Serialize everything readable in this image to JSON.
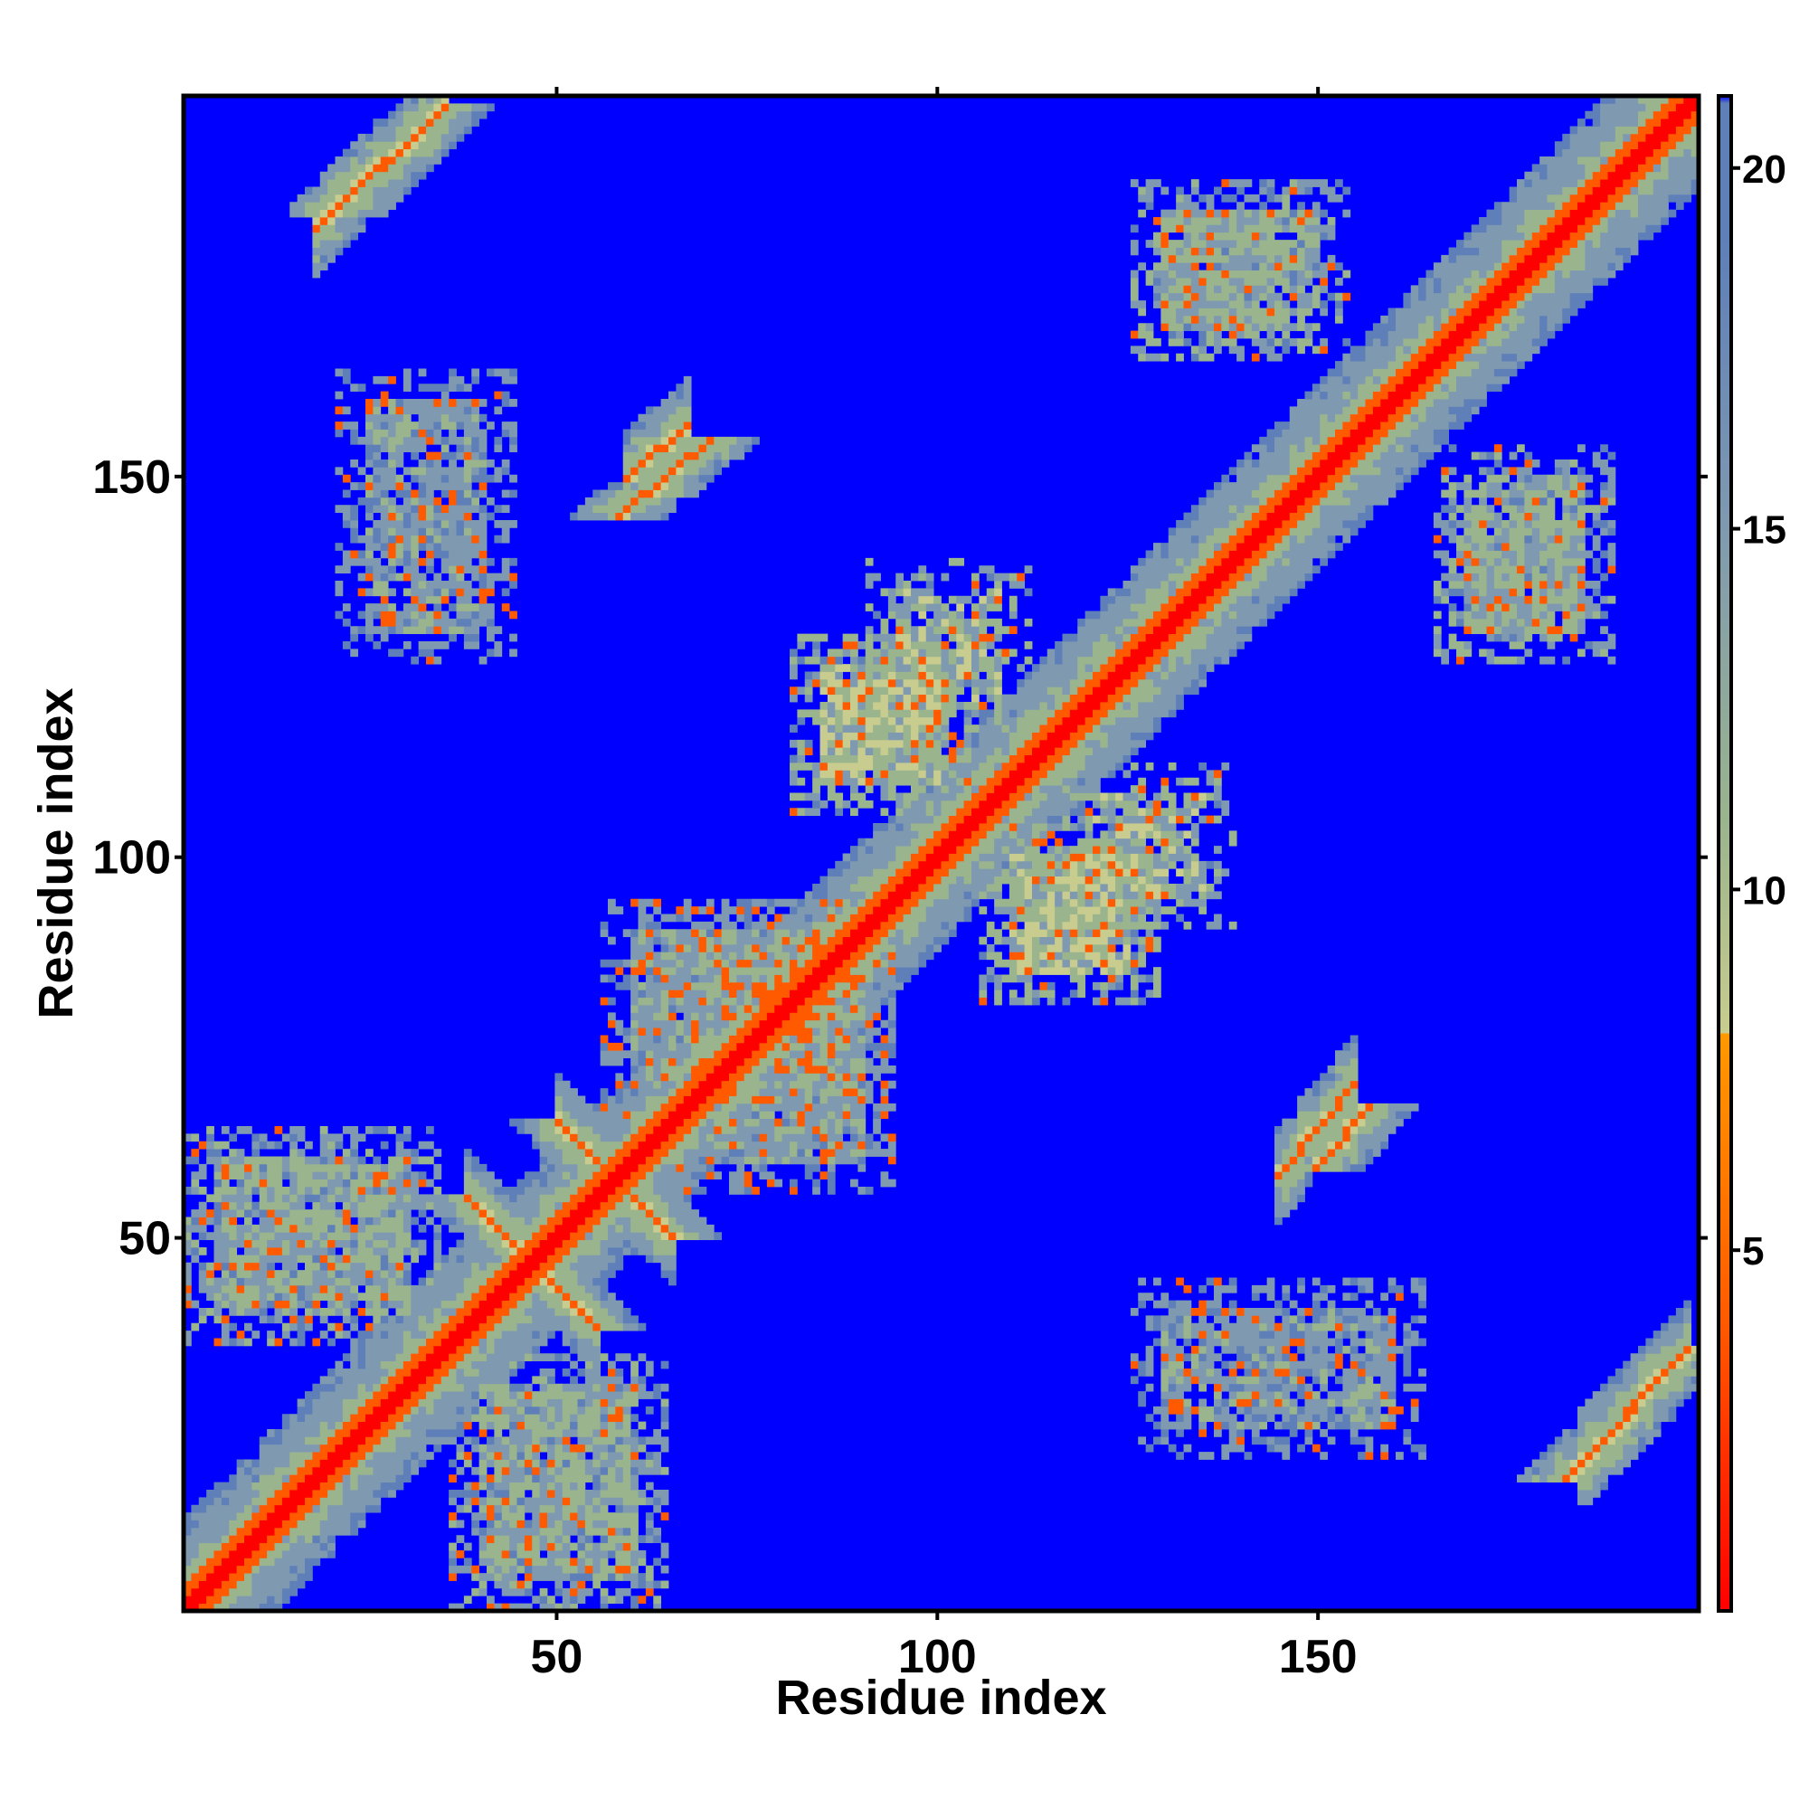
{
  "chart_data": {
    "type": "heatmap",
    "title": "",
    "xlabel": "Residue index",
    "ylabel": "Residue index",
    "n_residues": 200,
    "xlim": [
      1,
      200
    ],
    "ylim": [
      1,
      200
    ],
    "x_ticks": [
      50,
      100,
      150
    ],
    "y_ticks": [
      50,
      100,
      150
    ],
    "colorbar": {
      "range": [
        0,
        21
      ],
      "ticks": [
        5,
        10,
        15,
        20
      ],
      "stops": [
        {
          "value": 0,
          "color": "#ff0000"
        },
        {
          "value": 4,
          "color": "#ff5a00"
        },
        {
          "value": 8,
          "color": "#ff9900"
        },
        {
          "value": 8.01,
          "color": "#c8cc8f"
        },
        {
          "value": 11,
          "color": "#9ab48e"
        },
        {
          "value": 15,
          "color": "#7f9ab0"
        },
        {
          "value": 19,
          "color": "#5f7fb8"
        },
        {
          "value": 20.9,
          "color": "#5f7fb8"
        },
        {
          "value": 21,
          "color": "#0000ff"
        }
      ]
    },
    "background_color": "#0000ff",
    "contact_blocks": [
      {
        "x": [
          1,
          200
        ],
        "y": [
          1,
          200
        ],
        "value": 1,
        "kind": "diagonal"
      },
      {
        "x": [
          38,
          55
        ],
        "y": [
          38,
          55
        ],
        "value": 6,
        "kind": "cross"
      },
      {
        "x": [
          50,
          65
        ],
        "y": [
          50,
          65
        ],
        "value": 6,
        "kind": "cross"
      },
      {
        "x": [
          150,
          157
        ],
        "y": [
          59,
          67
        ],
        "value": 6,
        "kind": "strand"
      },
      {
        "x": [
          58,
          70
        ],
        "y": [
          145,
          155
        ],
        "value": 6,
        "kind": "strand"
      },
      {
        "x": [
          20,
          35
        ],
        "y": [
          185,
          199
        ],
        "value": 6,
        "kind": "strand"
      },
      {
        "x": [
          183,
          199
        ],
        "y": [
          18,
          35
        ],
        "value": 6,
        "kind": "strand"
      },
      {
        "x": [
          85,
          100
        ],
        "y": [
          110,
          125
        ],
        "value": 9,
        "kind": "patch"
      },
      {
        "x": [
          110,
          125
        ],
        "y": [
          85,
          100
        ],
        "value": 9,
        "kind": "patch"
      },
      {
        "x": [
          120,
          135
        ],
        "y": [
          95,
          108
        ],
        "value": 9,
        "kind": "patch"
      },
      {
        "x": [
          170,
          185
        ],
        "y": [
          130,
          145
        ],
        "value": 11,
        "kind": "patch"
      },
      {
        "x": [
          130,
          150
        ],
        "y": [
          170,
          185
        ],
        "value": 11,
        "kind": "patch"
      },
      {
        "x": [
          5,
          30
        ],
        "y": [
          40,
          60
        ],
        "value": 12,
        "kind": "patch"
      },
      {
        "x": [
          40,
          60
        ],
        "y": [
          5,
          30
        ],
        "value": 12,
        "kind": "patch"
      },
      {
        "x": [
          25,
          40
        ],
        "y": [
          130,
          160
        ],
        "value": 14,
        "kind": "patch"
      },
      {
        "x": [
          130,
          160
        ],
        "y": [
          25,
          40
        ],
        "value": 14,
        "kind": "patch"
      },
      {
        "x": [
          60,
          90
        ],
        "y": [
          70,
          90
        ],
        "value": 13,
        "kind": "patch"
      },
      {
        "x": [
          70,
          90
        ],
        "y": [
          60,
          90
        ],
        "value": 13,
        "kind": "patch"
      }
    ]
  }
}
